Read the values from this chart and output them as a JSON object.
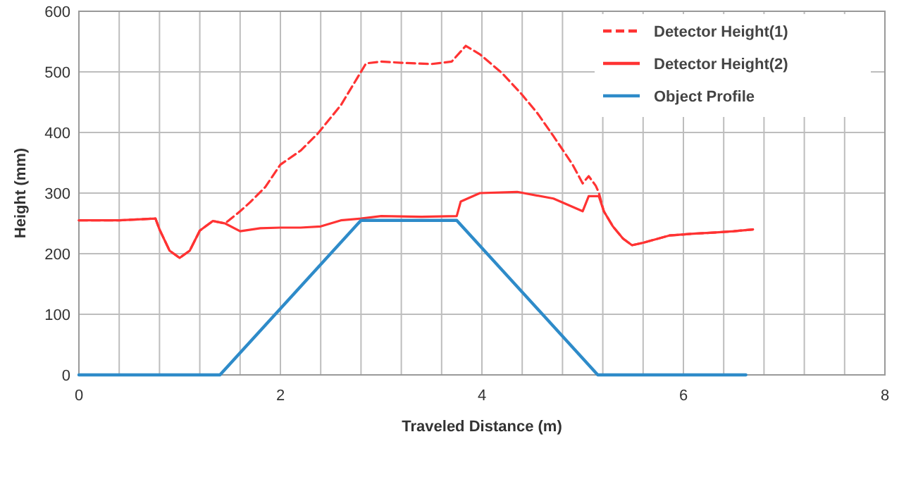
{
  "chart_data": {
    "type": "line",
    "xlabel": "Traveled Distance (m)",
    "ylabel": "Height (mm)",
    "xlim": [
      0,
      8
    ],
    "ylim": [
      0,
      600
    ],
    "xticks": [
      0,
      {
        "value": 0.4,
        "label": null
      },
      {
        "value": 0.8,
        "label": null
      },
      {
        "value": 1.2,
        "label": null
      },
      {
        "value": 1.6,
        "label": null
      },
      2,
      {
        "value": 2.4,
        "label": null
      },
      {
        "value": 2.8,
        "label": null
      },
      {
        "value": 3.2,
        "label": null
      },
      {
        "value": 3.6,
        "label": null
      },
      4,
      {
        "value": 4.4,
        "label": null
      },
      {
        "value": 4.8,
        "label": null
      },
      {
        "value": 5.2,
        "label": null
      },
      {
        "value": 5.6,
        "label": null
      },
      6,
      {
        "value": 6.4,
        "label": null
      },
      {
        "value": 6.8,
        "label": null
      },
      {
        "value": 7.2,
        "label": null
      },
      {
        "value": 7.6,
        "label": null
      },
      8
    ],
    "yticks": [
      0,
      100,
      200,
      300,
      400,
      500,
      600
    ],
    "grid": true,
    "legend": "top right",
    "series": [
      {
        "name": "Detector Height(1)",
        "color": "#ff3333",
        "line_style": "dashed",
        "x": [
          0,
          0.4,
          0.76,
          0.8,
          0.9,
          1.0,
          1.1,
          1.2,
          1.33,
          1.45,
          1.6,
          1.7,
          1.85,
          2.0,
          2.2,
          2.37,
          2.6,
          2.85,
          3.0,
          3.2,
          3.5,
          3.7,
          3.84,
          3.98,
          4.2,
          4.39,
          4.55,
          4.71,
          4.9,
          5.0,
          5.06,
          5.13,
          5.16,
          5.21,
          5.3,
          5.4,
          5.49,
          5.6,
          5.86,
          6.1,
          6.32,
          6.5,
          6.69
        ],
        "values": [
          255,
          255,
          258,
          240,
          205,
          193,
          205,
          238,
          254,
          250,
          270,
          285,
          310,
          347,
          370,
          398,
          445,
          514,
          517,
          515,
          513,
          517,
          543,
          529,
          498,
          464,
          432,
          394,
          347,
          316,
          328,
          312,
          301,
          270,
          245,
          225,
          214,
          218,
          230,
          233,
          235,
          237,
          240
        ]
      },
      {
        "name": "Detector Height(2)",
        "color": "#ff3333",
        "line_style": "solid",
        "x": [
          0,
          0.4,
          0.76,
          0.8,
          0.9,
          1.0,
          1.1,
          1.2,
          1.33,
          1.45,
          1.6,
          1.8,
          2.0,
          2.2,
          2.4,
          2.6,
          2.8,
          3.0,
          3.4,
          3.75,
          3.79,
          3.98,
          4.35,
          4.71,
          5.0,
          5.06,
          5.16,
          5.21,
          5.3,
          5.4,
          5.49,
          5.6,
          5.86,
          6.1,
          6.32,
          6.5,
          6.69
        ],
        "values": [
          255,
          255,
          258,
          240,
          205,
          193,
          205,
          238,
          254,
          250,
          237,
          242,
          243,
          243,
          245,
          255,
          258,
          262,
          261,
          262,
          286,
          300,
          302,
          291,
          270,
          295,
          295,
          270,
          245,
          225,
          214,
          218,
          230,
          233,
          235,
          237,
          240
        ]
      },
      {
        "name": "Object Profile",
        "color": "#2e8bc9",
        "line_style": "solid",
        "x": [
          0,
          1.4,
          2.8,
          3.75,
          5.15,
          6.62
        ],
        "values": [
          0,
          0,
          255,
          255,
          0,
          0
        ]
      }
    ]
  }
}
